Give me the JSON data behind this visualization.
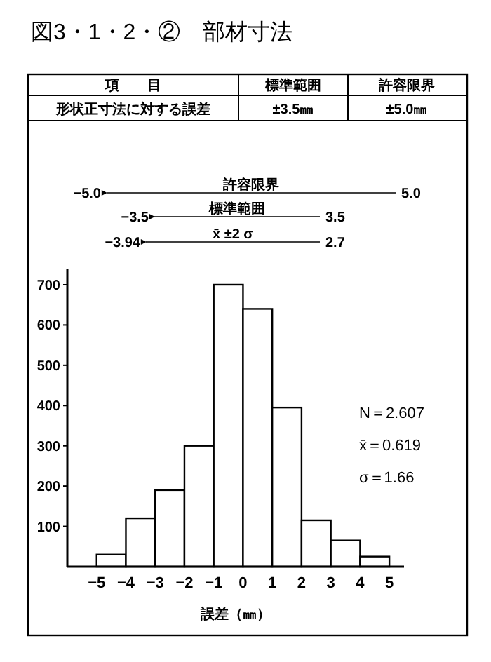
{
  "chart_data": {
    "type": "histogram",
    "title": "図3・1・2・②　部材寸法",
    "xlabel": "誤差（㎜）",
    "bins": [
      -5,
      -4,
      -3,
      -2,
      -1,
      0,
      1,
      2,
      3,
      4,
      5
    ],
    "values": [
      30,
      120,
      190,
      300,
      700,
      640,
      395,
      115,
      65,
      25
    ],
    "color": "#ffffff",
    "xlim": [
      -6,
      5.5
    ],
    "xticks": [
      {
        "value": -5,
        "label": "−5"
      },
      {
        "value": -4,
        "label": "−4"
      },
      {
        "value": -3,
        "label": "−3"
      },
      {
        "value": -2,
        "label": "−2"
      },
      {
        "value": -1,
        "label": "−1"
      },
      0,
      1,
      2,
      3,
      4,
      5
    ],
    "ylim": [
      0,
      740
    ],
    "yticks": [
      100,
      200,
      300,
      400,
      500,
      600,
      700
    ],
    "annotations": [
      "項　　目",
      "標準範囲",
      "許容限界",
      "形状正寸法に対する誤差",
      "±3.5㎜",
      "±5.0㎜",
      "許容限界",
      "−5.0",
      "5.0",
      "標準範囲",
      "−3.5",
      "3.5",
      "x̄ ±2 σ",
      "−3.94",
      "2.7",
      "N＝2.607",
      "x̄＝0.619",
      "σ＝1.66"
    ]
  }
}
